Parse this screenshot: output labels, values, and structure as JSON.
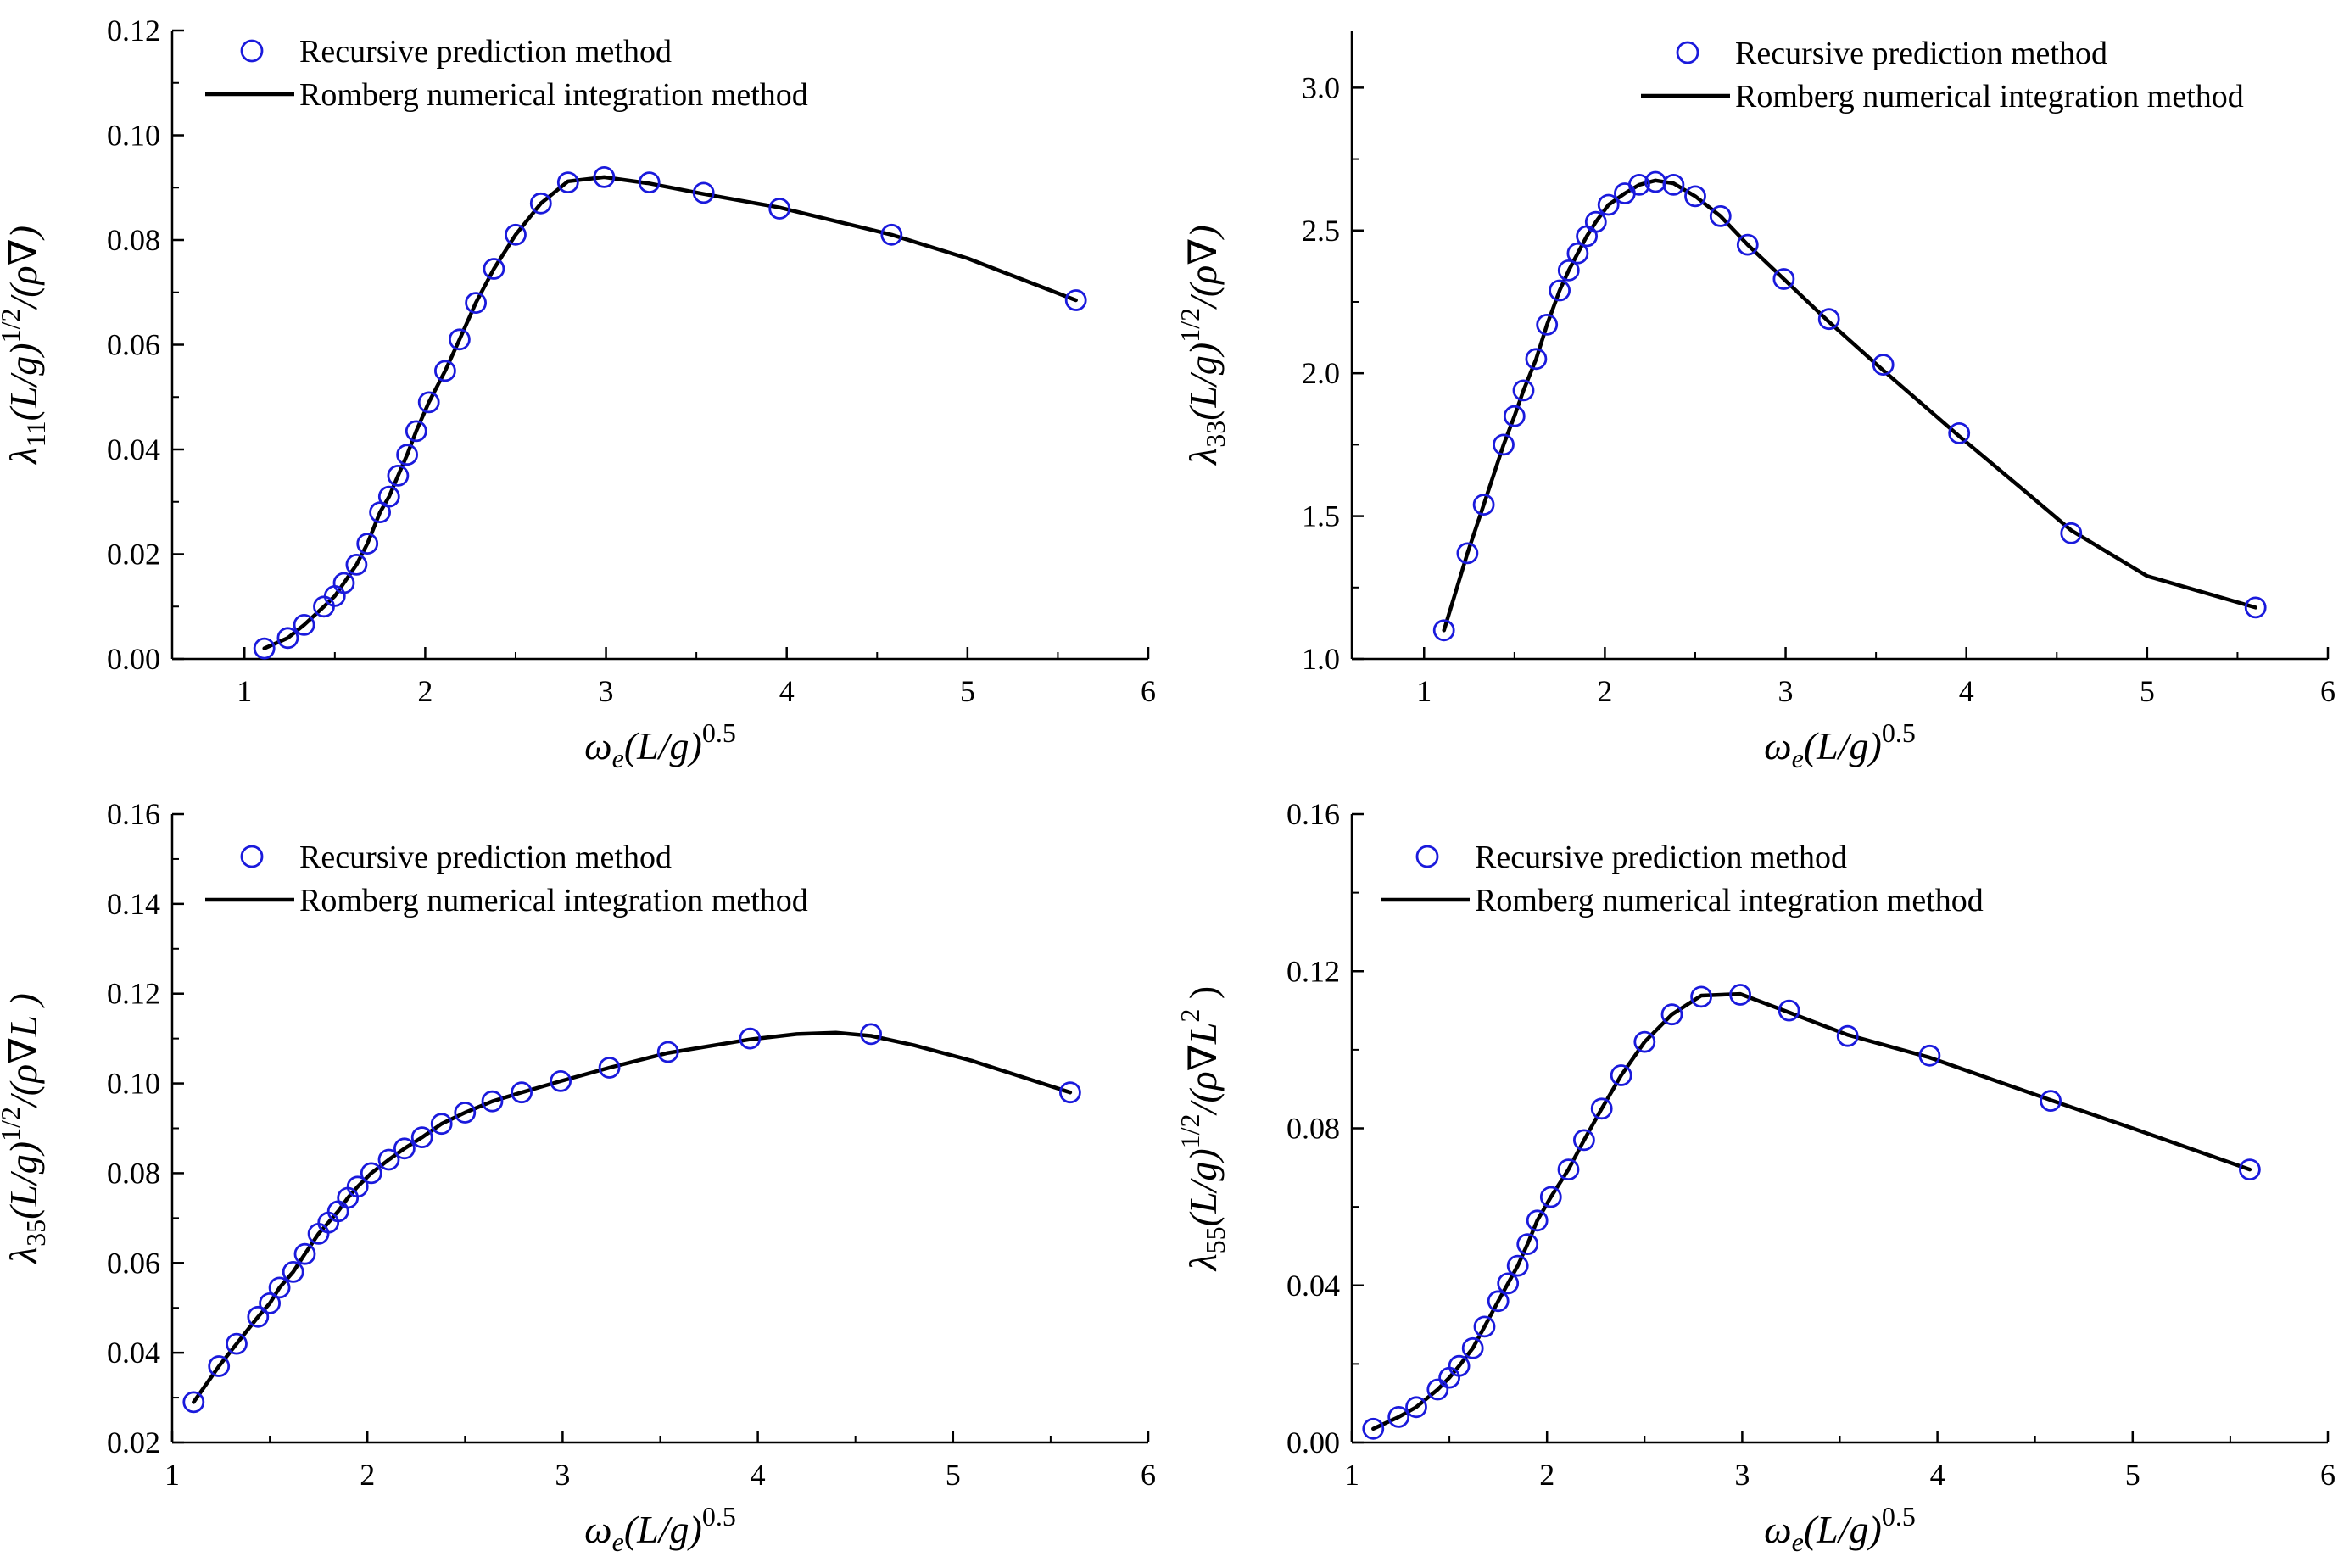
{
  "colors": {
    "marker": "#1a1adc",
    "line": "#000000",
    "axis": "#000000",
    "background": "#ffffff"
  },
  "legend": {
    "markers_label": "Recursive prediction method",
    "line_label": "Romberg numerical integration method"
  },
  "chart_data": [
    {
      "type": "line",
      "panel": "top-left",
      "xlim": [
        0.6,
        6
      ],
      "ylim": [
        0,
        0.12
      ],
      "xticks": [
        1,
        2,
        3,
        4,
        5,
        6
      ],
      "xtick_labels": [
        "1",
        "2",
        "3",
        "4",
        "5",
        "6"
      ],
      "yticks": [
        0,
        0.02,
        0.04,
        0.06,
        0.08,
        0.1,
        0.12
      ],
      "ytick_labels": [
        "0.00",
        "0.02",
        "0.04",
        "0.06",
        "0.08",
        "0.10",
        "0.12"
      ],
      "xlabel": {
        "sym": "ω",
        "sub": "e",
        "body": "(L/g)",
        "sup": "0.5"
      },
      "ylabel": {
        "sym": "λ",
        "sub": "11",
        "body": "(L/g)",
        "sup": "1/2",
        "tail": "/(ρ∇)"
      },
      "legend_position": "top-left",
      "series": [
        {
          "name": "Recursive prediction method",
          "kind": "markers",
          "x": [
            1.11,
            1.24,
            1.33,
            1.44,
            1.5,
            1.55,
            1.62,
            1.68,
            1.75,
            1.8,
            1.85,
            1.9,
            1.95,
            2.02,
            2.11,
            2.19,
            2.28,
            2.38,
            2.5,
            2.64,
            2.79,
            2.99,
            3.24,
            3.54,
            3.96,
            4.58,
            5.6
          ],
          "y": [
            0.002,
            0.004,
            0.0065,
            0.01,
            0.012,
            0.0145,
            0.018,
            0.022,
            0.028,
            0.031,
            0.035,
            0.039,
            0.0435,
            0.049,
            0.055,
            0.061,
            0.068,
            0.0745,
            0.081,
            0.087,
            0.091,
            0.092,
            0.091,
            0.089,
            0.086,
            0.081,
            0.0685
          ]
        },
        {
          "name": "Romberg numerical integration method",
          "kind": "line",
          "x": [
            1.11,
            1.24,
            1.33,
            1.44,
            1.5,
            1.55,
            1.62,
            1.68,
            1.75,
            1.8,
            1.85,
            1.9,
            1.95,
            2.02,
            2.11,
            2.19,
            2.28,
            2.38,
            2.5,
            2.64,
            2.79,
            2.99,
            3.24,
            3.54,
            3.96,
            4.58,
            5.0,
            5.6
          ],
          "y": [
            0.002,
            0.004,
            0.0065,
            0.01,
            0.012,
            0.0145,
            0.018,
            0.022,
            0.028,
            0.031,
            0.035,
            0.039,
            0.0435,
            0.049,
            0.055,
            0.061,
            0.068,
            0.0745,
            0.081,
            0.087,
            0.0912,
            0.092,
            0.0908,
            0.0888,
            0.0862,
            0.081,
            0.0765,
            0.0685
          ]
        }
      ]
    },
    {
      "type": "line",
      "panel": "top-right",
      "xlim": [
        0.6,
        6
      ],
      "ylim": [
        1.0,
        3.2
      ],
      "xticks": [
        1,
        2,
        3,
        4,
        5,
        6
      ],
      "xtick_labels": [
        "1",
        "2",
        "3",
        "4",
        "5",
        "6"
      ],
      "yticks": [
        1.0,
        1.5,
        2.0,
        2.5,
        3.0
      ],
      "ytick_labels": [
        "1.0",
        "1.5",
        "2.0",
        "2.5",
        "3.0"
      ],
      "xlabel": {
        "sym": "ω",
        "sub": "e",
        "body": "(L/g)",
        "sup": "0.5"
      },
      "ylabel": {
        "sym": "λ",
        "sub": "33",
        "body": "(L/g)",
        "sup": "1/2",
        "tail": "/(ρ∇)"
      },
      "legend_position": "top-right",
      "series": [
        {
          "name": "Recursive prediction method",
          "kind": "markers",
          "x": [
            1.11,
            1.24,
            1.33,
            1.44,
            1.5,
            1.55,
            1.62,
            1.68,
            1.75,
            1.8,
            1.85,
            1.9,
            1.95,
            2.02,
            2.11,
            2.19,
            2.28,
            2.38,
            2.5,
            2.64,
            2.79,
            2.99,
            3.24,
            3.54,
            3.96,
            4.58,
            5.6
          ],
          "y": [
            1.1,
            1.37,
            1.54,
            1.75,
            1.85,
            1.94,
            2.05,
            2.17,
            2.29,
            2.36,
            2.42,
            2.48,
            2.53,
            2.59,
            2.63,
            2.66,
            2.67,
            2.66,
            2.62,
            2.55,
            2.45,
            2.33,
            2.19,
            2.03,
            1.79,
            1.44,
            1.18
          ]
        },
        {
          "name": "Romberg numerical integration method",
          "kind": "line",
          "x": [
            1.11,
            1.24,
            1.33,
            1.44,
            1.5,
            1.55,
            1.62,
            1.68,
            1.75,
            1.8,
            1.85,
            1.9,
            1.95,
            2.02,
            2.11,
            2.19,
            2.28,
            2.38,
            2.5,
            2.64,
            2.79,
            2.99,
            3.24,
            3.54,
            3.96,
            4.3,
            4.58,
            5.0,
            5.6
          ],
          "y": [
            1.1,
            1.37,
            1.54,
            1.75,
            1.85,
            1.94,
            2.05,
            2.17,
            2.29,
            2.36,
            2.42,
            2.48,
            2.53,
            2.59,
            2.63,
            2.66,
            2.675,
            2.665,
            2.62,
            2.55,
            2.45,
            2.33,
            2.18,
            2.01,
            1.78,
            1.6,
            1.45,
            1.29,
            1.18
          ]
        }
      ]
    },
    {
      "type": "line",
      "panel": "bottom-left",
      "xlim": [
        1,
        6
      ],
      "ylim": [
        0.02,
        0.16
      ],
      "xticks": [
        1,
        2,
        3,
        4,
        5,
        6
      ],
      "xtick_labels": [
        "1",
        "2",
        "3",
        "4",
        "5",
        "6"
      ],
      "yticks": [
        0.02,
        0.04,
        0.06,
        0.08,
        0.1,
        0.12,
        0.14,
        0.16
      ],
      "ytick_labels": [
        "0.02",
        "0.04",
        "0.06",
        "0.08",
        "0.10",
        "0.12",
        "0.14",
        "0.16"
      ],
      "xlabel": {
        "sym": "ω",
        "sub": "e",
        "body": "(L/g)",
        "sup": "0.5"
      },
      "ylabel": {
        "sym": "λ",
        "sub": "35",
        "body": "(L/g)",
        "sup": "1/2",
        "tail": "/(ρ∇L )"
      },
      "legend_position": "top-left",
      "series": [
        {
          "name": "Recursive prediction method",
          "kind": "markers",
          "x": [
            1.11,
            1.24,
            1.33,
            1.44,
            1.5,
            1.55,
            1.62,
            1.68,
            1.75,
            1.8,
            1.85,
            1.9,
            1.95,
            2.02,
            2.11,
            2.19,
            2.28,
            2.38,
            2.5,
            2.64,
            2.79,
            2.99,
            3.24,
            3.54,
            3.96,
            4.58,
            5.6
          ],
          "y": [
            0.029,
            0.037,
            0.042,
            0.048,
            0.051,
            0.0545,
            0.058,
            0.062,
            0.0665,
            0.069,
            0.0715,
            0.0745,
            0.077,
            0.08,
            0.083,
            0.0855,
            0.088,
            0.091,
            0.0935,
            0.096,
            0.098,
            0.1005,
            0.1035,
            0.107,
            0.11,
            0.111,
            0.098
          ]
        },
        {
          "name": "Romberg numerical integration method",
          "kind": "line",
          "x": [
            1.11,
            1.24,
            1.33,
            1.44,
            1.5,
            1.55,
            1.62,
            1.68,
            1.75,
            1.8,
            1.85,
            1.9,
            1.95,
            2.02,
            2.11,
            2.19,
            2.28,
            2.38,
            2.5,
            2.64,
            2.79,
            2.99,
            3.24,
            3.54,
            3.96,
            4.2,
            4.4,
            4.58,
            4.8,
            5.1,
            5.6
          ],
          "y": [
            0.029,
            0.037,
            0.042,
            0.048,
            0.051,
            0.0545,
            0.058,
            0.062,
            0.0665,
            0.069,
            0.0715,
            0.0745,
            0.077,
            0.08,
            0.083,
            0.0855,
            0.088,
            0.091,
            0.0935,
            0.096,
            0.098,
            0.1005,
            0.1035,
            0.1068,
            0.1098,
            0.111,
            0.1113,
            0.1106,
            0.1085,
            0.105,
            0.098
          ]
        }
      ]
    },
    {
      "type": "line",
      "panel": "bottom-right",
      "xlim": [
        1,
        6
      ],
      "ylim": [
        0,
        0.16
      ],
      "xticks": [
        1,
        2,
        3,
        4,
        5,
        6
      ],
      "xtick_labels": [
        "1",
        "2",
        "3",
        "4",
        "5",
        "6"
      ],
      "yticks": [
        0,
        0.04,
        0.08,
        0.12,
        0.16
      ],
      "ytick_labels": [
        "0.00",
        "0.04",
        "0.08",
        "0.12",
        "0.16"
      ],
      "xlabel": {
        "sym": "ω",
        "sub": "e",
        "body": "(L/g)",
        "sup": "0.5"
      },
      "ylabel": {
        "sym": "λ",
        "sub": "55",
        "body": "(L/g)",
        "sup": "1/2",
        "tail": "/(ρ∇L",
        "tail_sup": "2",
        "tail_end": " )"
      },
      "legend_position": "top-left",
      "series": [
        {
          "name": "Recursive prediction method",
          "kind": "markers",
          "x": [
            1.11,
            1.24,
            1.33,
            1.44,
            1.5,
            1.55,
            1.62,
            1.68,
            1.75,
            1.8,
            1.85,
            1.9,
            1.95,
            2.02,
            2.11,
            2.19,
            2.28,
            2.38,
            2.5,
            2.64,
            2.79,
            2.99,
            3.24,
            3.54,
            3.96,
            4.58,
            5.6
          ],
          "y": [
            0.0035,
            0.0065,
            0.009,
            0.0135,
            0.0165,
            0.0195,
            0.024,
            0.0295,
            0.036,
            0.0405,
            0.045,
            0.0505,
            0.0565,
            0.0625,
            0.0695,
            0.077,
            0.085,
            0.0935,
            0.102,
            0.109,
            0.1135,
            0.114,
            0.11,
            0.1035,
            0.0985,
            0.087,
            0.0695
          ]
        },
        {
          "name": "Romberg numerical integration method",
          "kind": "line",
          "x": [
            1.11,
            1.24,
            1.33,
            1.44,
            1.5,
            1.55,
            1.62,
            1.68,
            1.75,
            1.8,
            1.85,
            1.9,
            1.95,
            2.02,
            2.11,
            2.19,
            2.28,
            2.38,
            2.5,
            2.64,
            2.79,
            2.99,
            3.24,
            3.54,
            3.96,
            4.58,
            5.0,
            5.6
          ],
          "y": [
            0.0035,
            0.0065,
            0.009,
            0.0135,
            0.0165,
            0.0195,
            0.024,
            0.0295,
            0.036,
            0.0405,
            0.045,
            0.0505,
            0.0565,
            0.0625,
            0.0695,
            0.077,
            0.085,
            0.0935,
            0.102,
            0.109,
            0.1138,
            0.1142,
            0.1095,
            0.1038,
            0.098,
            0.0872,
            0.08,
            0.0695
          ]
        }
      ]
    }
  ]
}
